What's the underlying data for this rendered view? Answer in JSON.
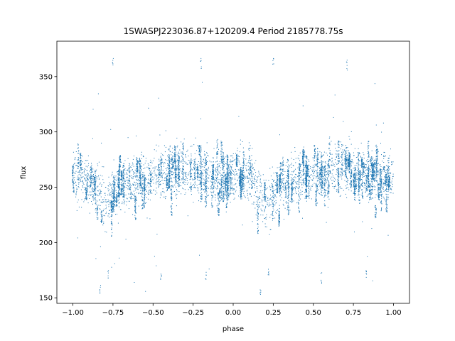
{
  "chart_data": {
    "type": "scatter",
    "title": "1SWASPJ223036.87+120209.4 Period 2185778.75s",
    "xlabel": "phase",
    "ylabel": "flux",
    "xlim": [
      -1.1,
      1.1
    ],
    "ylim": [
      145,
      382
    ],
    "x_ticks": [
      -1.0,
      -0.75,
      -0.5,
      -0.25,
      0.0,
      0.25,
      0.5,
      0.75,
      1.0
    ],
    "x_tick_labels": [
      "−1.00",
      "−0.75",
      "−0.50",
      "−0.25",
      "0.00",
      "0.25",
      "0.50",
      "0.75",
      "1.00"
    ],
    "y_ticks": [
      150,
      200,
      250,
      300,
      350
    ],
    "y_tick_labels": [
      "150",
      "200",
      "250",
      "300",
      "350"
    ],
    "grid": false,
    "marker_color": "#1f77b4",
    "series": [
      {
        "phase": [
          -1.0,
          -0.95,
          -0.9,
          -0.85,
          -0.8,
          -0.75,
          -0.7,
          -0.65,
          -0.6,
          -0.55,
          -0.5,
          -0.45,
          -0.4,
          -0.35,
          -0.3,
          -0.25,
          -0.2,
          -0.15,
          -0.1,
          -0.05,
          0.0,
          0.05,
          0.1,
          0.15,
          0.2,
          0.25,
          0.3,
          0.35,
          0.4,
          0.45,
          0.5,
          0.55,
          0.6,
          0.65,
          0.7,
          0.75,
          0.8,
          0.85,
          0.9,
          0.95,
          1.0
        ],
        "flux_mean": [
          262,
          262,
          258,
          248,
          236,
          245,
          250,
          255,
          255,
          258,
          262,
          262,
          265,
          266,
          266,
          265,
          262,
          260,
          258,
          258,
          260,
          262,
          258,
          248,
          236,
          245,
          250,
          255,
          255,
          258,
          262,
          262,
          265,
          266,
          266,
          265,
          262,
          260,
          258,
          258,
          260
        ]
      }
    ],
    "outliers": [
      {
        "phase": -0.83,
        "flux": 158
      },
      {
        "phase": -0.78,
        "flux": 172
      },
      {
        "phase": -0.75,
        "flux": 365
      },
      {
        "phase": -0.45,
        "flux": 168
      },
      {
        "phase": -0.17,
        "flux": 170
      },
      {
        "phase": 0.17,
        "flux": 158
      },
      {
        "phase": 0.22,
        "flux": 172
      },
      {
        "phase": 0.25,
        "flux": 365
      },
      {
        "phase": 0.55,
        "flux": 168
      },
      {
        "phase": 0.83,
        "flux": 170
      },
      {
        "phase": -0.2,
        "flux": 362
      },
      {
        "phase": 0.71,
        "flux": 360
      }
    ]
  }
}
